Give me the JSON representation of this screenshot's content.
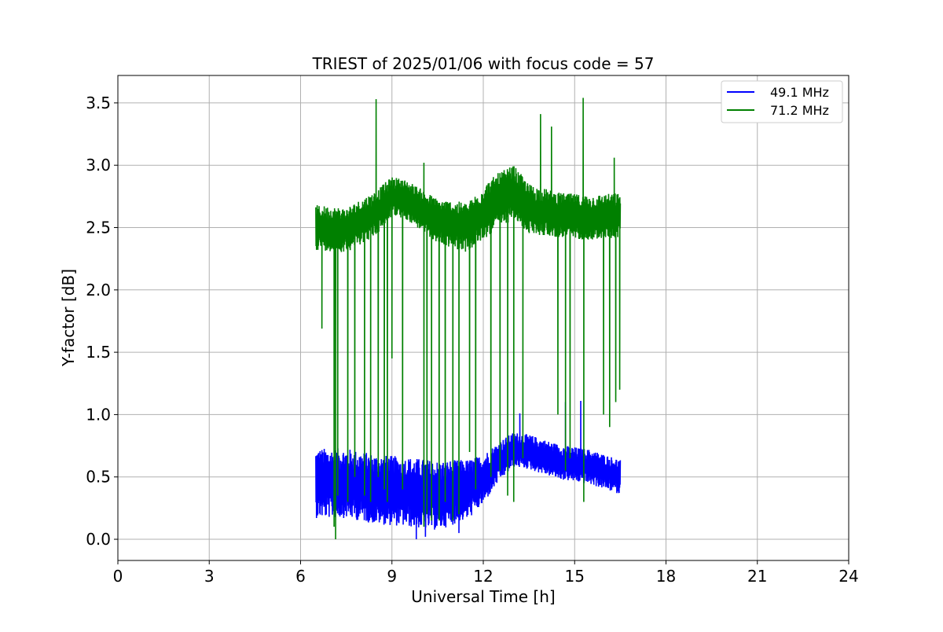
{
  "chart_data": {
    "type": "line",
    "title": "TRIEST of 2025/01/06 with focus code = 57",
    "xlabel": "Universal Time [h]",
    "ylabel": "Y-factor [dB]",
    "xlim": [
      0,
      24
    ],
    "ylim": [
      -0.17,
      3.72
    ],
    "xticks": [
      0,
      3,
      6,
      9,
      12,
      15,
      18,
      21,
      24
    ],
    "yticks": [
      0.0,
      0.5,
      1.0,
      1.5,
      2.0,
      2.5,
      3.0,
      3.5
    ],
    "ytick_labels": [
      "0.0",
      "0.5",
      "1.0",
      "1.5",
      "2.0",
      "2.5",
      "3.0",
      "3.5"
    ],
    "grid": true,
    "legend_position": "top-right",
    "series": [
      {
        "name": "49.1 MHz",
        "color": "#0000ff",
        "x_range": [
          6.5,
          16.5
        ],
        "trend": {
          "x": [
            6.5,
            7.5,
            8.5,
            9.5,
            10.5,
            11.5,
            12.0,
            12.5,
            13.0,
            13.5,
            14.5,
            15.5,
            16.5
          ],
          "center": [
            0.45,
            0.45,
            0.4,
            0.38,
            0.35,
            0.4,
            0.48,
            0.62,
            0.72,
            0.7,
            0.62,
            0.58,
            0.5
          ],
          "spread": [
            0.28,
            0.28,
            0.28,
            0.28,
            0.28,
            0.24,
            0.2,
            0.16,
            0.14,
            0.14,
            0.14,
            0.14,
            0.14
          ]
        },
        "spikes": [
          [
            10.1,
            0.02
          ],
          [
            9.8,
            0.0
          ],
          [
            14.7,
            1.1
          ],
          [
            15.2,
            1.11
          ],
          [
            13.2,
            1.01
          ],
          [
            11.2,
            0.05
          ]
        ]
      },
      {
        "name": "71.2 MHz",
        "color": "#008000",
        "x_range": [
          6.5,
          16.5
        ],
        "trend": {
          "x": [
            6.5,
            7.5,
            8.5,
            9.0,
            9.5,
            10.5,
            11.5,
            12.0,
            12.5,
            13.0,
            13.5,
            14.5,
            15.5,
            16.5
          ],
          "center": [
            2.5,
            2.48,
            2.62,
            2.75,
            2.72,
            2.55,
            2.5,
            2.62,
            2.72,
            2.78,
            2.65,
            2.6,
            2.58,
            2.6
          ],
          "spread": [
            0.18,
            0.18,
            0.18,
            0.16,
            0.16,
            0.18,
            0.2,
            0.22,
            0.22,
            0.22,
            0.2,
            0.18,
            0.18,
            0.18
          ]
        },
        "peaks": [
          [
            8.48,
            3.53
          ],
          [
            10.05,
            3.02
          ],
          [
            13.88,
            3.41
          ],
          [
            14.24,
            3.31
          ],
          [
            15.28,
            3.54
          ],
          [
            16.3,
            3.06
          ]
        ],
        "dropouts": [
          [
            6.7,
            1.69
          ],
          [
            7.1,
            0.1
          ],
          [
            7.15,
            0.0
          ],
          [
            7.22,
            0.35
          ],
          [
            7.55,
            0.3
          ],
          [
            7.78,
            0.5
          ],
          [
            8.1,
            0.35
          ],
          [
            8.3,
            0.3
          ],
          [
            8.55,
            0.5
          ],
          [
            8.75,
            0.4
          ],
          [
            8.85,
            0.3
          ],
          [
            9.0,
            1.45
          ],
          [
            9.35,
            0.4
          ],
          [
            10.05,
            0.1
          ],
          [
            10.15,
            0.2
          ],
          [
            10.3,
            0.15
          ],
          [
            10.55,
            0.15
          ],
          [
            10.75,
            0.3
          ],
          [
            11.0,
            0.15
          ],
          [
            11.2,
            0.2
          ],
          [
            11.55,
            0.7
          ],
          [
            11.75,
            0.4
          ],
          [
            12.25,
            0.5
          ],
          [
            12.55,
            0.55
          ],
          [
            12.8,
            0.35
          ],
          [
            13.0,
            0.3
          ],
          [
            13.3,
            0.65
          ],
          [
            14.45,
            1.0
          ],
          [
            14.7,
            0.55
          ],
          [
            14.85,
            0.65
          ],
          [
            15.3,
            0.3
          ],
          [
            15.95,
            1.0
          ],
          [
            16.15,
            0.9
          ],
          [
            16.35,
            1.1
          ],
          [
            16.48,
            1.2
          ]
        ]
      }
    ]
  }
}
